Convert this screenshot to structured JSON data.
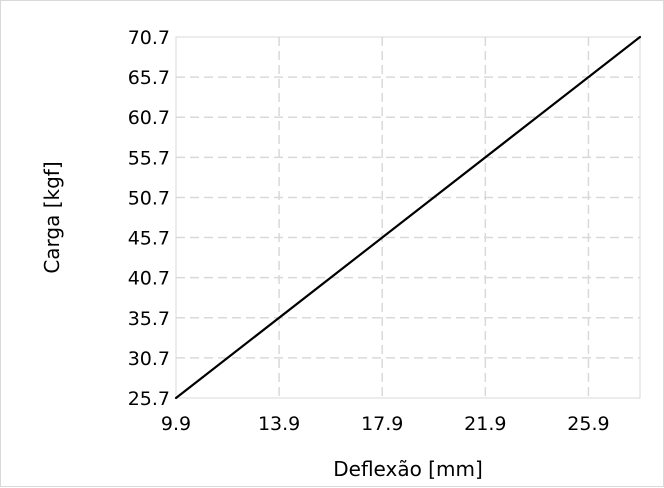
{
  "chart_data": {
    "type": "line",
    "title": "",
    "xlabel": "Deflexão [mm]",
    "ylabel": "Carga [kgf]",
    "xlim": [
      9.9,
      27.9
    ],
    "ylim": [
      25.7,
      70.7
    ],
    "x_ticks": [
      "9.9",
      "13.9",
      "17.9",
      "21.9",
      "25.9"
    ],
    "y_ticks": [
      "25.7",
      "30.7",
      "35.7",
      "40.7",
      "45.7",
      "50.7",
      "55.7",
      "60.7",
      "65.7",
      "70.7"
    ],
    "grid": true,
    "legend": "none",
    "series": [
      {
        "color": "#000000",
        "x": [
          9.9,
          27.9
        ],
        "y": [
          25.7,
          70.7
        ]
      }
    ]
  }
}
